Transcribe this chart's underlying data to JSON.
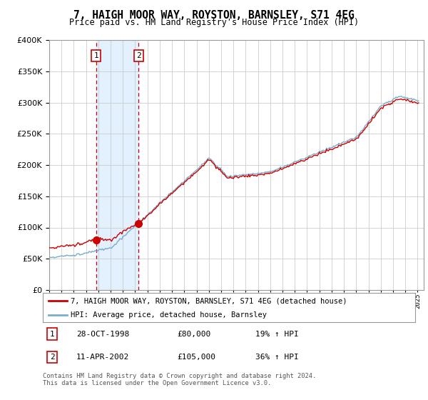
{
  "title": "7, HAIGH MOOR WAY, ROYSTON, BARNSLEY, S71 4EG",
  "subtitle": "Price paid vs. HM Land Registry's House Price Index (HPI)",
  "legend_label_red": "7, HAIGH MOOR WAY, ROYSTON, BARNSLEY, S71 4EG (detached house)",
  "legend_label_blue": "HPI: Average price, detached house, Barnsley",
  "transactions": [
    {
      "num": 1,
      "date": "28-OCT-1998",
      "price": 80000,
      "hpi_pct": "19% ↑ HPI",
      "year": 1998.83
    },
    {
      "num": 2,
      "date": "11-APR-2002",
      "price": 105000,
      "hpi_pct": "36% ↑ HPI",
      "year": 2002.28
    }
  ],
  "footer": "Contains HM Land Registry data © Crown copyright and database right 2024.\nThis data is licensed under the Open Government Licence v3.0.",
  "ylim": [
    0,
    400000
  ],
  "yticks": [
    0,
    50000,
    100000,
    150000,
    200000,
    250000,
    300000,
    350000,
    400000
  ],
  "background_color": "#ffffff",
  "grid_color": "#cccccc",
  "red_color": "#cc0000",
  "blue_color": "#7aaccc",
  "shade_color": "#ddeeff",
  "transaction_box_color": "#cc0000",
  "ratio1": 1.19,
  "ratio2": 1.36
}
